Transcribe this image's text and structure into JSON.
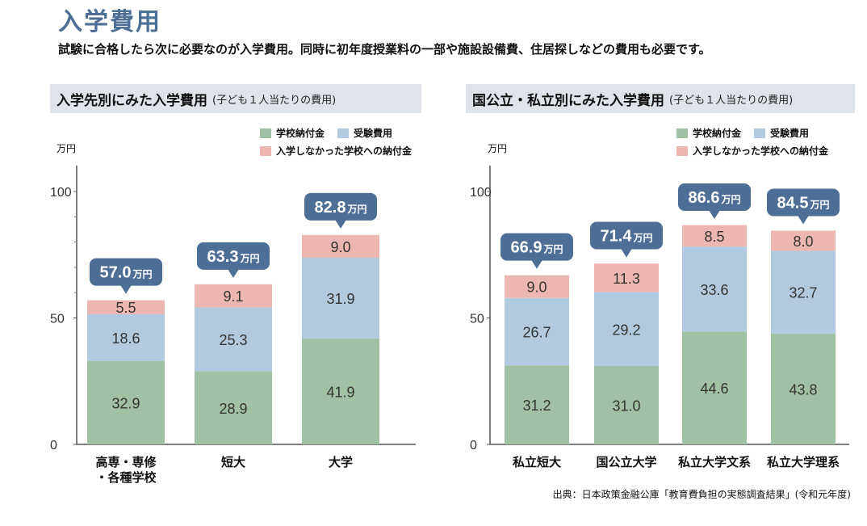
{
  "page": {
    "title": "入学費用",
    "lead": "試験に合格したら次に必要なのが入学費用。同時に初年度授業料の一部や施設設備費、住居探しなどの費用も必要です。",
    "source": "出典：日本政策金融公庫「教育費負担の実態調査結果」(令和元年度)"
  },
  "colors": {
    "title": "#4d6f95",
    "header_bg": "#dfe4ea",
    "school_fee": "#a0c1a3",
    "exam_fee": "#b1cadf",
    "unenrolled_fee": "#ecb6b2",
    "callout": "#4d6f95"
  },
  "legend": {
    "school_fee": "学校納付金",
    "exam_fee": "受験費用",
    "unenrolled_fee": "入学しなかった学校への納付金"
  },
  "chart_data": [
    {
      "type": "bar",
      "stacked": true,
      "title": "入学先別にみた入学費用",
      "subtitle": "(子ども１人当たりの費用)",
      "unit": "万円",
      "ylabel": "万円",
      "ylim": [
        0,
        100
      ],
      "yticks": [
        "0",
        "50",
        "100"
      ],
      "categories": [
        [
          "高専・専修",
          "・各種学校"
        ],
        [
          "短大"
        ],
        [
          "大学"
        ]
      ],
      "series": [
        {
          "name": "学校納付金",
          "values": [
            32.9,
            28.9,
            41.9
          ]
        },
        {
          "name": "受験費用",
          "values": [
            18.6,
            25.3,
            31.9
          ]
        },
        {
          "name": "入学しなかった学校への納付金",
          "values": [
            5.5,
            9.1,
            9.0
          ]
        }
      ],
      "totals": [
        57.0,
        63.3,
        82.8
      ],
      "value_labels": [
        [
          "32.9",
          "18.6",
          "5.5"
        ],
        [
          "28.9",
          "25.3",
          "9.1"
        ],
        [
          "41.9",
          "31.9",
          "9.0"
        ]
      ],
      "total_labels": [
        "57.0",
        "63.3",
        "82.8"
      ],
      "total_unit": "万円",
      "legend_position": "top-right"
    },
    {
      "type": "bar",
      "stacked": true,
      "title": "国公立・私立別にみた入学費用",
      "subtitle": "(子ども１人当たりの費用)",
      "unit": "万円",
      "ylabel": "万円",
      "ylim": [
        0,
        100
      ],
      "yticks": [
        "0",
        "50",
        "100"
      ],
      "categories": [
        [
          "私立短大"
        ],
        [
          "国公立大学"
        ],
        [
          "私立大学文系"
        ],
        [
          "私立大学理系"
        ]
      ],
      "series": [
        {
          "name": "学校納付金",
          "values": [
            31.2,
            31.0,
            44.6,
            43.8
          ]
        },
        {
          "name": "受験費用",
          "values": [
            26.7,
            29.2,
            33.6,
            32.7
          ]
        },
        {
          "name": "入学しなかった学校への納付金",
          "values": [
            9.0,
            11.3,
            8.5,
            8.0
          ]
        }
      ],
      "totals": [
        66.9,
        71.4,
        86.6,
        84.5
      ],
      "value_labels": [
        [
          "31.2",
          "26.7",
          "9.0"
        ],
        [
          "31.0",
          "29.2",
          "11.3"
        ],
        [
          "44.6",
          "33.6",
          "8.5"
        ],
        [
          "43.8",
          "32.7",
          "8.0"
        ]
      ],
      "total_labels": [
        "66.9",
        "71.4",
        "86.6",
        "84.5"
      ],
      "total_unit": "万円",
      "legend_position": "top-right"
    }
  ]
}
